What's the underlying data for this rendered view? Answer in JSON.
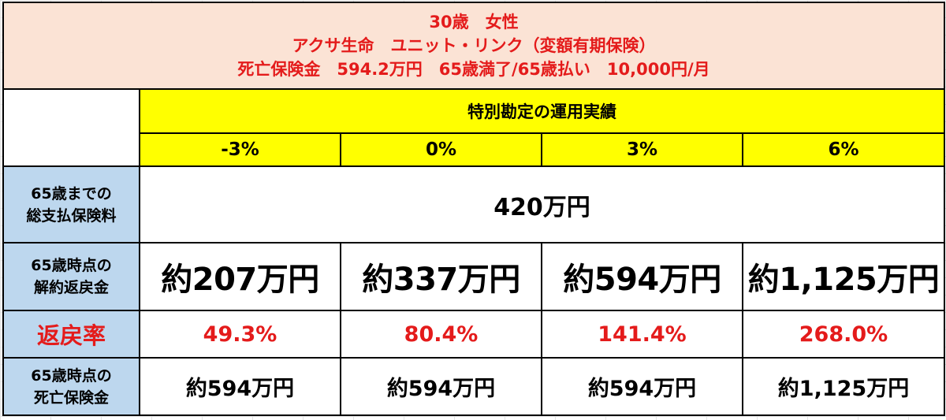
{
  "header": {
    "line1": "30歳　女性",
    "line2": "アクサ生命　ユニット・リンク（変額有期保険）",
    "line3": "死亡保険金　594.2万円　65歳満了/65歳払い　10,000円/月"
  },
  "section_title": "特別勘定の運用実績",
  "scenarios": [
    "-3%",
    "0%",
    "3%",
    "6%"
  ],
  "rows": {
    "premium": {
      "label_line1": "65歳までの",
      "label_line2": "総支払保険料",
      "value": "420万円"
    },
    "surrender": {
      "label_line1": "65歳時点の",
      "label_line2": "解約返戻金",
      "values": [
        "約207万円",
        "約337万円",
        "約594万円",
        "約1,125万円"
      ]
    },
    "rate": {
      "label": "返戻率",
      "values": [
        "49.3%",
        "80.4%",
        "141.4%",
        "268.0%"
      ]
    },
    "death": {
      "label_line1": "65歳時点の",
      "label_line2": "死亡保険金",
      "values": [
        "約594万円",
        "約594万円",
        "約594万円",
        "約1,125万円"
      ]
    }
  },
  "colors": {
    "header_bg": "#fbe3d5",
    "accent_red": "#e41b1b",
    "yellow": "#ffff00",
    "label_blue": "#bdd7ee"
  }
}
